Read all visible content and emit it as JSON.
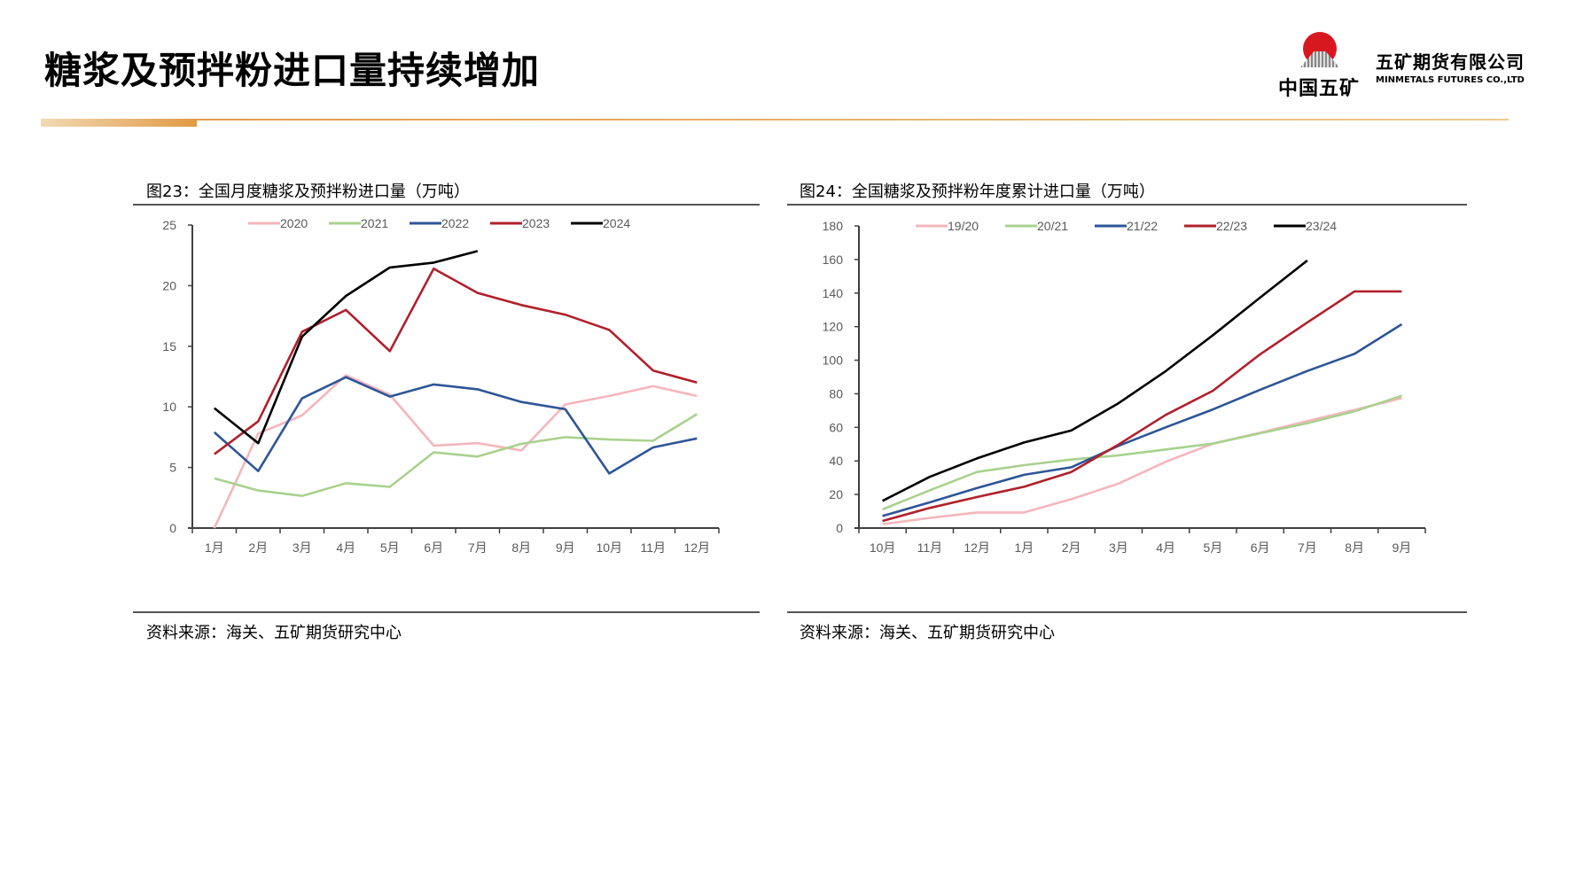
{
  "page": {
    "title": "糖浆及预拌粉进口量持续增加",
    "logo_text": "中国五矿",
    "company_cn": "五矿期货有限公司",
    "company_en": "MINMETALS FUTURES CO.,LTD"
  },
  "colors": {
    "pink": "#F4B6BC",
    "green": "#A9D18E",
    "blue": "#2E5597",
    "red": "#B0202B",
    "black": "#000000",
    "accent": "#E29A45"
  },
  "chart_data": [
    {
      "id": "fig23",
      "type": "line",
      "title": "图23：全国月度糖浆及预拌粉进口量（万吨）",
      "source": "资料来源：海关、五矿期货研究中心",
      "xlabel": "",
      "ylabel": "",
      "ylim": [
        0,
        25
      ],
      "yticks": [
        "0",
        "5",
        "10",
        "15",
        "20",
        "25"
      ],
      "ytick_values": [
        0,
        5,
        10,
        15,
        20,
        25
      ],
      "grid": false,
      "legend": "top",
      "categories": [
        "1月",
        "2月",
        "3月",
        "4月",
        "5月",
        "6月",
        "7月",
        "8月",
        "9月",
        "10月",
        "11月",
        "12月"
      ],
      "series": [
        {
          "name": "2020",
          "color": "#F4B6BC",
          "values": [
            0.0,
            7.8,
            9.3,
            12.6,
            11.0,
            6.8,
            7.0,
            6.4,
            10.2,
            10.9,
            11.7,
            10.9
          ]
        },
        {
          "name": "2021",
          "color": "#A9D18E",
          "values": [
            4.1,
            3.1,
            2.65,
            3.7,
            3.4,
            6.25,
            5.9,
            6.95,
            7.5,
            7.3,
            7.2,
            9.4
          ]
        },
        {
          "name": "2022",
          "color": "#2E5597",
          "values": [
            7.9,
            4.7,
            10.7,
            12.45,
            10.85,
            11.85,
            11.45,
            10.4,
            9.8,
            4.5,
            6.65,
            7.4
          ]
        },
        {
          "name": "2023",
          "color": "#B0202B",
          "values": [
            6.1,
            8.8,
            16.2,
            18.0,
            14.6,
            21.4,
            19.4,
            18.4,
            17.6,
            16.35,
            13.0,
            12.0
          ]
        },
        {
          "name": "2024",
          "color": "#000000",
          "values": [
            9.9,
            7.0,
            15.8,
            19.15,
            21.5,
            21.9,
            22.85,
            null,
            null,
            null,
            null,
            null
          ]
        }
      ]
    },
    {
      "id": "fig24",
      "type": "line",
      "title": "图24：全国糖浆及预拌粉年度累计进口量（万吨）",
      "source": "资料来源：海关、五矿期货研究中心",
      "xlabel": "",
      "ylabel": "",
      "ylim": [
        0,
        180
      ],
      "yticks": [
        "0",
        "20",
        "40",
        "60",
        "80",
        "100",
        "120",
        "140",
        "160",
        "180"
      ],
      "ytick_values": [
        0,
        20,
        40,
        60,
        80,
        100,
        120,
        140,
        160,
        180
      ],
      "grid": false,
      "legend": "top",
      "categories": [
        "10月",
        "11月",
        "12月",
        "1月",
        "2月",
        "3月",
        "4月",
        "5月",
        "6月",
        "7月",
        "8月",
        "9月"
      ],
      "series": [
        {
          "name": "19/20",
          "color": "#F4B6BC",
          "values": [
            2.3,
            6.0,
            9.3,
            9.3,
            17.2,
            26.5,
            39.5,
            50.3,
            56.8,
            63.7,
            70.4,
            77.4
          ]
        },
        {
          "name": "20/21",
          "color": "#A9D18E",
          "values": [
            11.1,
            22.5,
            33.4,
            37.5,
            40.8,
            43.3,
            46.8,
            50.3,
            56.5,
            62.5,
            69.5,
            78.8
          ]
        },
        {
          "name": "21/22",
          "color": "#2E5597",
          "values": [
            7.2,
            15.3,
            23.8,
            31.7,
            36.2,
            49.0,
            60.0,
            70.7,
            82.4,
            93.6,
            103.8,
            121.4
          ]
        },
        {
          "name": "22/23",
          "color": "#B0202B",
          "values": [
            4.2,
            12.0,
            18.5,
            24.6,
            33.4,
            49.8,
            67.4,
            81.8,
            103.5,
            122.5,
            141.0,
            141.0
          ]
        },
        {
          "name": "23/24",
          "color": "#000000",
          "values": [
            16.2,
            30.5,
            41.5,
            51.0,
            58.1,
            74.4,
            93.5,
            114.9,
            137.3,
            159.4,
            null,
            null
          ]
        }
      ]
    }
  ]
}
